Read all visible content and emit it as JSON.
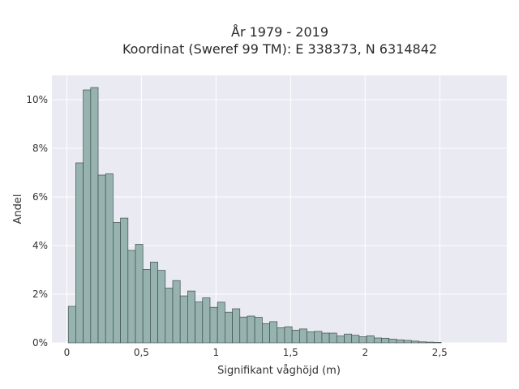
{
  "chart_data": {
    "type": "bar",
    "title_lines": [
      "År 1979 - 2019",
      "Koordinat (Sweref 99 TM): E 338373, N 6314842"
    ],
    "xlabel": "Signifikant våghöjd (m)",
    "ylabel": "Andel",
    "xlim": [
      -0.1,
      2.95
    ],
    "ylim": [
      0,
      0.11
    ],
    "x_ticks": [
      {
        "value": 0,
        "label": "0"
      },
      {
        "value": 0.5,
        "label": "0,5"
      },
      {
        "value": 1,
        "label": "1"
      },
      {
        "value": 1.5,
        "label": "1,5"
      },
      {
        "value": 2,
        "label": "2"
      },
      {
        "value": 2.5,
        "label": "2,5"
      }
    ],
    "y_ticks": [
      {
        "value": 0,
        "label": "0%"
      },
      {
        "value": 0.02,
        "label": "2%"
      },
      {
        "value": 0.04,
        "label": "4%"
      },
      {
        "value": 0.06,
        "label": "6%"
      },
      {
        "value": 0.08,
        "label": "8%"
      },
      {
        "value": 0.1,
        "label": "10%"
      }
    ],
    "grid": true,
    "bin_start": 0.01,
    "bin_width": 0.05,
    "values": [
      0.015,
      0.074,
      0.104,
      0.105,
      0.069,
      0.0695,
      0.0495,
      0.0513,
      0.038,
      0.0405,
      0.0302,
      0.0332,
      0.0298,
      0.0225,
      0.0256,
      0.0193,
      0.0213,
      0.0168,
      0.0185,
      0.0146,
      0.0167,
      0.0126,
      0.014,
      0.0106,
      0.011,
      0.0105,
      0.0079,
      0.0087,
      0.0062,
      0.0066,
      0.0052,
      0.0057,
      0.0045,
      0.0047,
      0.004,
      0.004,
      0.0028,
      0.0036,
      0.0031,
      0.0025,
      0.0029,
      0.002,
      0.0019,
      0.0015,
      0.0012,
      0.001,
      0.0007,
      0.0004,
      0.0003,
      0.0002
    ],
    "colors": {
      "bar_fill": "#97b3b0",
      "bar_edge": "#3f4f4c",
      "plot_bg": "#eaeaf2",
      "grid": "#ffffff"
    }
  }
}
